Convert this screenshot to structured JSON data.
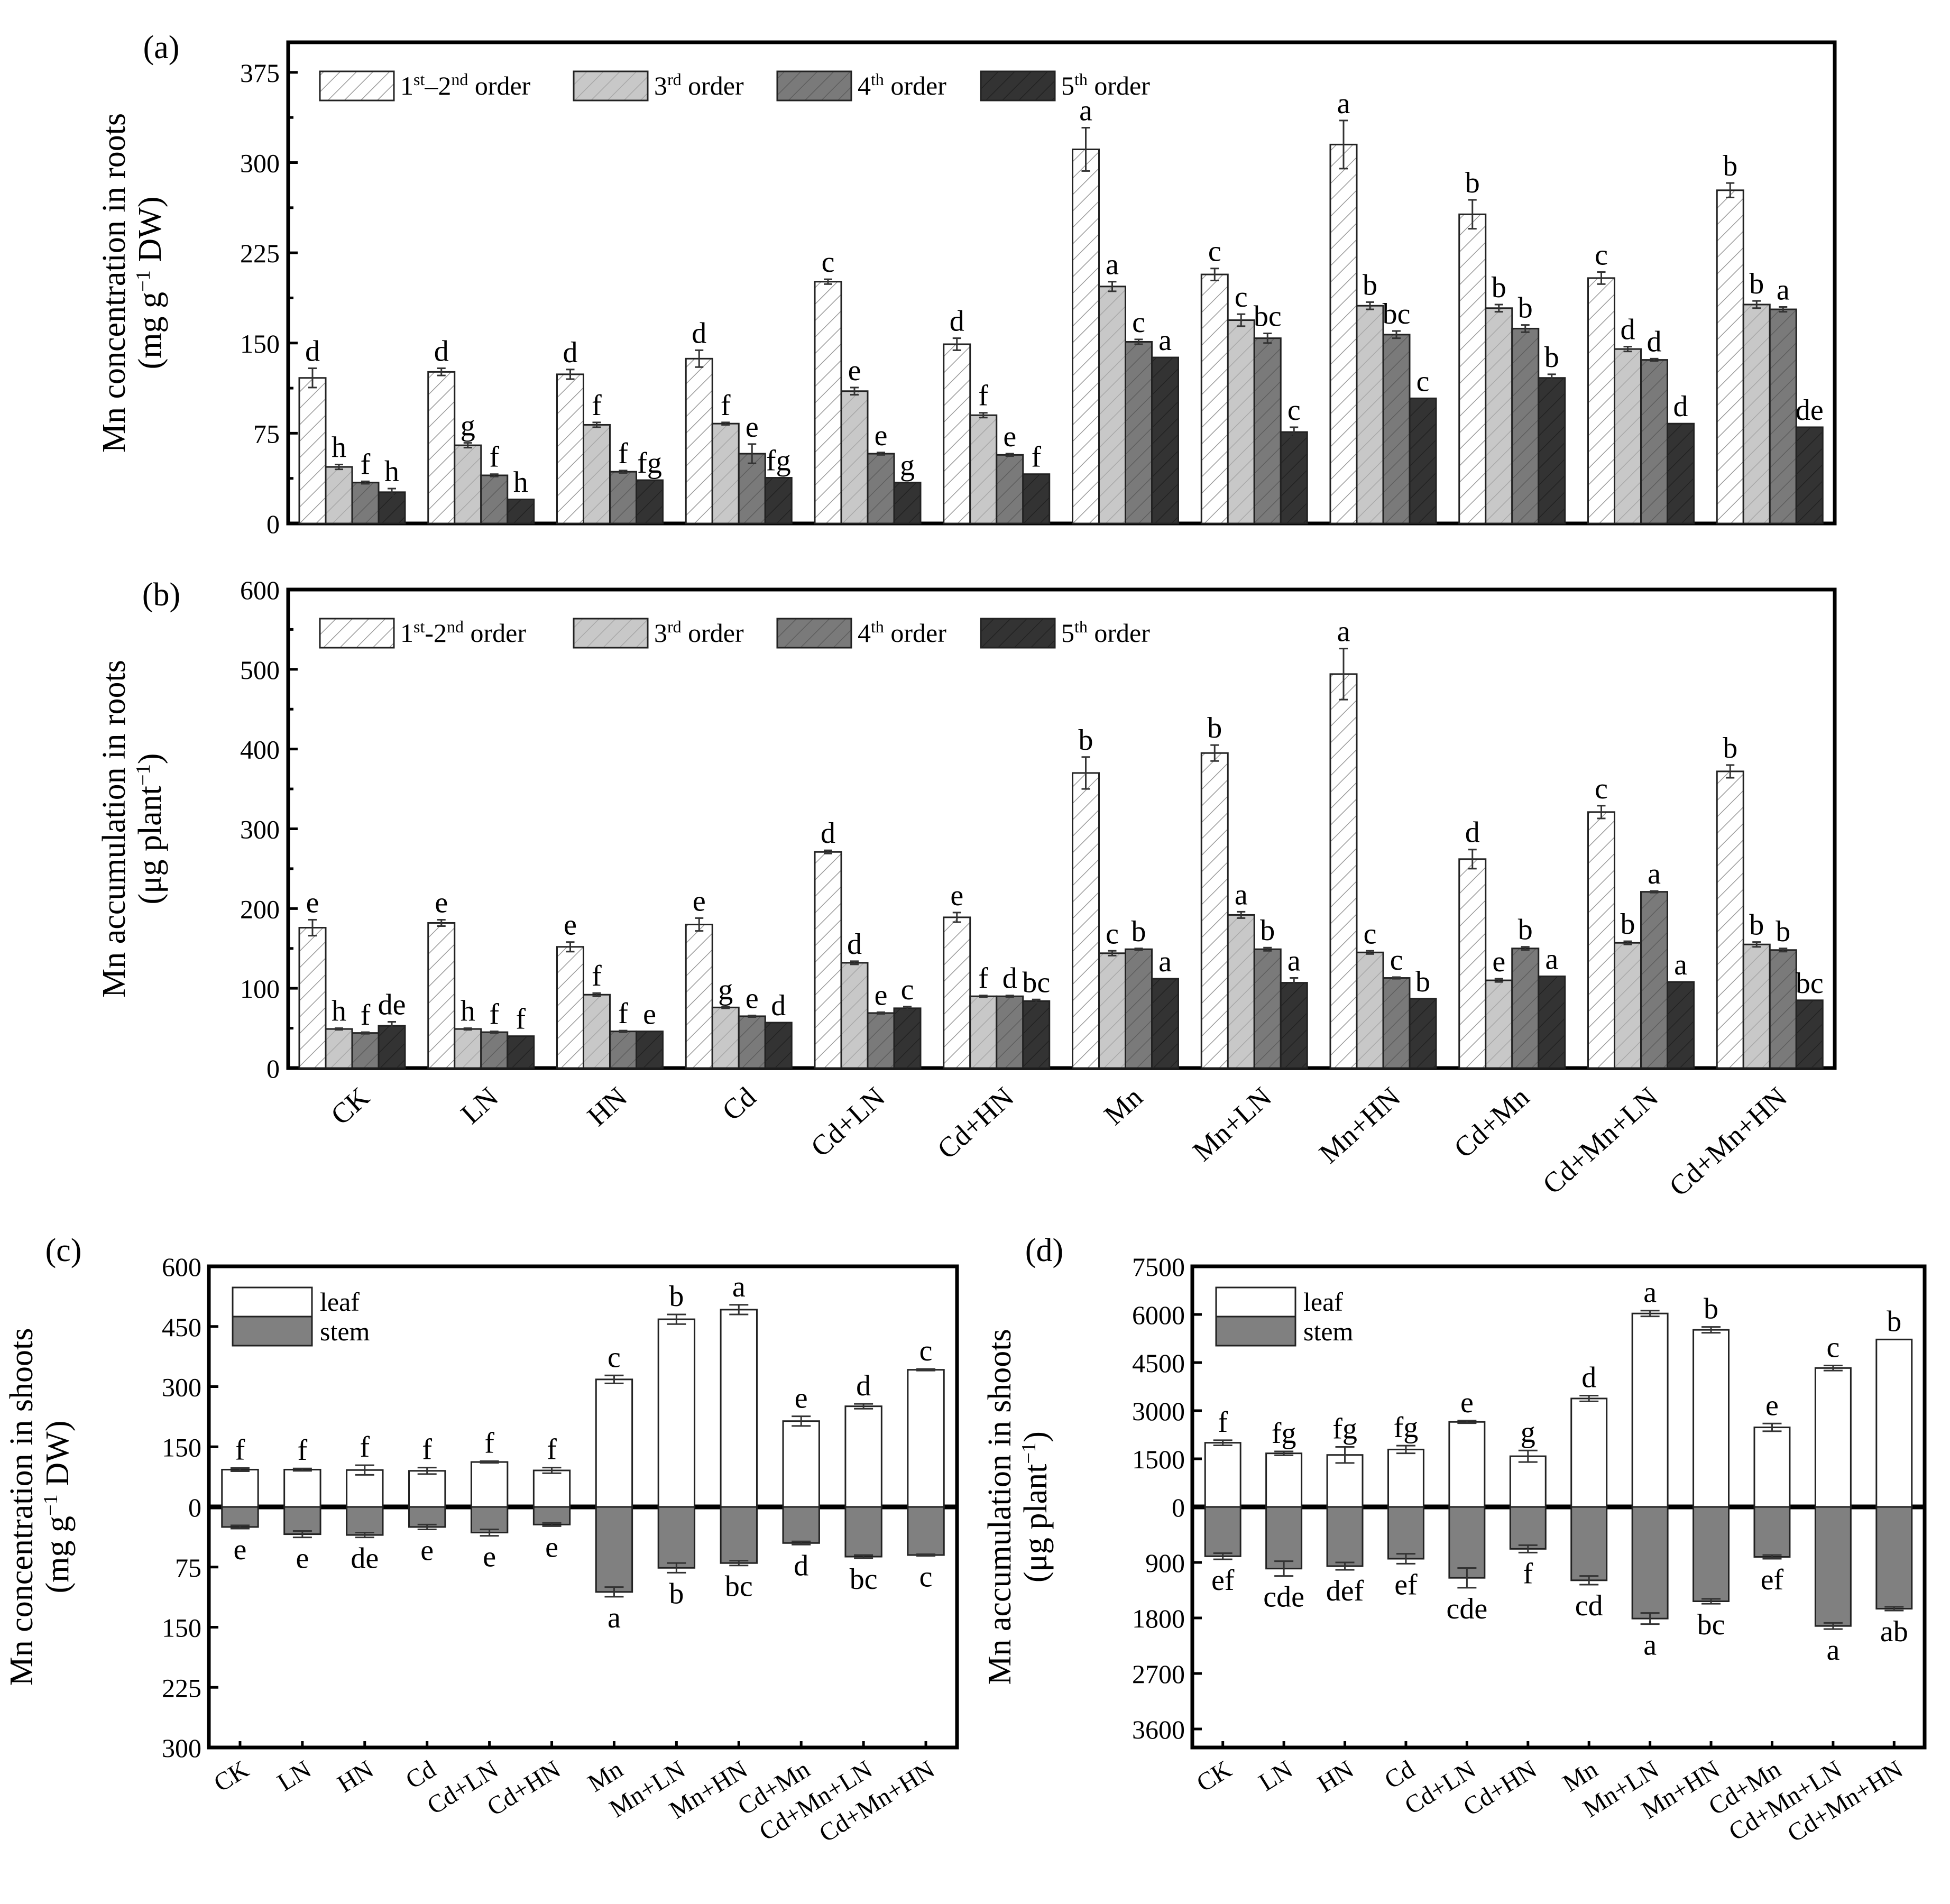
{
  "categories": [
    "CK",
    "LN",
    "HN",
    "Cd",
    "Cd+LN",
    "Cd+HN",
    "Mn",
    "Mn+LN",
    "Mn+HN",
    "Cd+Mn",
    "Cd+Mn+LN",
    "Cd+Mn+HN"
  ],
  "colors": {
    "order12": "#ffffff",
    "order3": "#c8c8c8",
    "order4": "#7a7a7a",
    "order5": "#333333",
    "leaf": "#ffffff",
    "stem": "#808080"
  },
  "chart_data": [
    {
      "id": "a",
      "type": "bar",
      "panel_label": "(a)",
      "ylabel_line1": "Mn concentration in roots",
      "ylabel_line2_pre": "(mg g",
      "ylabel_line2_sup": "−1",
      "ylabel_line2_post": " DW)",
      "ylim": [
        0,
        400
      ],
      "yticks": [
        0,
        75,
        150,
        225,
        300,
        375
      ],
      "legend": [
        {
          "pre": "1",
          "sup1": "st",
          "mid": "–2",
          "sup2": "nd",
          "post": " order"
        },
        {
          "pre": "3",
          "sup1": "rd",
          "mid": "",
          "sup2": "",
          "post": " order"
        },
        {
          "pre": "4",
          "sup1": "th",
          "mid": "",
          "sup2": "",
          "post": " order"
        },
        {
          "pre": "5",
          "sup1": "th",
          "mid": "",
          "sup2": "",
          "post": " order"
        }
      ],
      "series": [
        {
          "values": [
            121,
            126,
            124,
            137,
            201,
            149,
            311,
            207,
            315,
            257,
            204,
            277
          ],
          "errors": [
            8,
            3,
            4,
            7,
            2,
            5,
            18,
            5,
            20,
            12,
            5,
            6
          ],
          "letters": [
            "d",
            "d",
            "d",
            "d",
            "c",
            "d",
            "a",
            "c",
            "a",
            "b",
            "c",
            "b"
          ]
        },
        {
          "values": [
            47,
            65,
            82,
            83,
            110,
            90,
            197,
            169,
            181,
            179,
            145,
            182
          ],
          "errors": [
            2,
            2,
            2,
            1,
            3,
            2,
            4,
            5,
            3,
            3,
            2,
            3
          ],
          "letters": [
            "h",
            "g",
            "f",
            "f",
            "e",
            "f",
            "a",
            "c",
            "b",
            "b",
            "d",
            "b"
          ]
        },
        {
          "values": [
            34,
            40,
            43,
            58,
            58,
            57,
            151,
            154,
            157,
            162,
            136,
            178
          ],
          "errors": [
            1,
            1,
            1,
            8,
            1,
            1,
            2,
            4,
            3,
            3,
            1,
            2
          ],
          "letters": [
            "f",
            "f",
            "f",
            "e",
            "e",
            "e",
            "c",
            "bc",
            "bc",
            "b",
            "d",
            "a"
          ]
        },
        {
          "values": [
            26,
            20,
            36,
            38,
            34,
            41,
            138,
            76,
            104,
            121,
            83,
            80
          ],
          "errors": [
            3,
            0,
            0,
            0,
            0,
            0,
            0,
            4,
            0,
            3,
            0,
            0
          ],
          "letters": [
            "h",
            "h",
            "fg",
            "fg",
            "g",
            "f",
            "a",
            "c",
            "c",
            "b",
            "d",
            "de"
          ]
        }
      ]
    },
    {
      "id": "b",
      "type": "bar",
      "panel_label": "(b)",
      "ylabel_line1": "Mn accumulation in roots",
      "ylabel_line2_pre": "(μg plant",
      "ylabel_line2_sup": "−1",
      "ylabel_line2_post": ")",
      "ylim": [
        0,
        600
      ],
      "yticks": [
        0,
        100,
        200,
        300,
        400,
        500,
        600
      ],
      "legend": [
        {
          "pre": "1",
          "sup1": "st",
          "mid": "-2",
          "sup2": "nd",
          "post": " order"
        },
        {
          "pre": "3",
          "sup1": "rd",
          "mid": "",
          "sup2": "",
          "post": " order"
        },
        {
          "pre": "4",
          "sup1": "th",
          "mid": "",
          "sup2": "",
          "post": " order"
        },
        {
          "pre": "5",
          "sup1": "th",
          "mid": "",
          "sup2": "",
          "post": " order"
        }
      ],
      "series": [
        {
          "values": [
            176,
            182,
            152,
            180,
            271,
            189,
            370,
            395,
            494,
            262,
            321,
            372
          ],
          "errors": [
            10,
            4,
            6,
            8,
            2,
            6,
            20,
            10,
            32,
            12,
            8,
            8
          ],
          "letters": [
            "e",
            "e",
            "e",
            "e",
            "d",
            "e",
            "b",
            "b",
            "a",
            "d",
            "c",
            "b"
          ]
        },
        {
          "values": [
            49,
            49,
            92,
            76,
            132,
            90,
            144,
            192,
            145,
            110,
            157,
            155
          ],
          "errors": [
            1,
            1,
            2,
            1,
            2,
            1,
            3,
            4,
            2,
            2,
            2,
            3
          ],
          "letters": [
            "h",
            "h",
            "f",
            "g",
            "d",
            "f",
            "c",
            "a",
            "c",
            "e",
            "b",
            "b"
          ]
        },
        {
          "values": [
            44,
            45,
            46,
            65,
            69,
            90,
            149,
            149,
            113,
            150,
            221,
            148
          ],
          "errors": [
            1,
            1,
            1,
            1,
            1,
            1,
            1,
            2,
            1,
            2,
            1,
            2
          ],
          "letters": [
            "f",
            "f",
            "f",
            "e",
            "e",
            "d",
            "b",
            "b",
            "c",
            "b",
            "a",
            "b"
          ]
        },
        {
          "values": [
            53,
            40,
            46,
            57,
            75,
            84,
            112,
            107,
            87,
            115,
            108,
            85
          ],
          "errors": [
            5,
            0,
            0,
            0,
            2,
            2,
            0,
            6,
            0,
            0,
            0,
            0
          ],
          "letters": [
            "de",
            "f",
            "e",
            "d",
            "c",
            "bc",
            "a",
            "a",
            "b",
            "a",
            "a",
            "bc"
          ]
        }
      ]
    },
    {
      "id": "c",
      "type": "bar",
      "panel_label": "(c)",
      "ylabel_line1": "Mn concentration in shoots",
      "ylabel_line2_pre": "(mg g",
      "ylabel_line2_sup": "−1",
      "ylabel_line2_post": " DW)",
      "yticks_up": [
        0,
        150,
        300,
        450,
        600
      ],
      "yticks_down": [
        75,
        150,
        225,
        300
      ],
      "ylim_up": 600,
      "ylim_down": 300,
      "legend": [
        "leaf",
        "stem"
      ],
      "leaf": {
        "values": [
          93,
          93,
          92,
          90,
          112,
          91,
          318,
          468,
          492,
          214,
          251,
          342
        ],
        "errors": [
          4,
          3,
          12,
          8,
          2,
          7,
          10,
          12,
          12,
          12,
          6,
          2
        ],
        "letters": [
          "f",
          "f",
          "f",
          "f",
          "f",
          "f",
          "c",
          "b",
          "a",
          "e",
          "d",
          "c"
        ]
      },
      "stem": {
        "values": [
          25,
          34,
          35,
          25,
          32,
          22,
          106,
          76,
          70,
          45,
          62,
          60
        ],
        "errors": [
          2,
          4,
          3,
          3,
          4,
          2,
          6,
          6,
          3,
          2,
          2,
          1
        ],
        "letters": [
          "e",
          "e",
          "de",
          "e",
          "e",
          "e",
          "a",
          "b",
          "bc",
          "d",
          "bc",
          "c"
        ]
      }
    },
    {
      "id": "d",
      "type": "bar",
      "panel_label": "(d)",
      "ylabel_line1": "Mn accumulation in shoots",
      "ylabel_line2_pre": "(μg plant",
      "ylabel_line2_sup": "−1",
      "ylabel_line2_post": ")",
      "yticks_up": [
        0,
        1500,
        3000,
        4500,
        6000,
        7500
      ],
      "yticks_down": [
        900,
        1800,
        2700,
        3600
      ],
      "ylim_up": 7500,
      "ylim_down": 3900,
      "legend": [
        "leaf",
        "stem"
      ],
      "leaf": {
        "values": [
          2000,
          1670,
          1620,
          1790,
          2650,
          1580,
          3380,
          6030,
          5520,
          2480,
          4330,
          5220
        ],
        "errors": [
          80,
          60,
          250,
          120,
          40,
          180,
          90,
          90,
          90,
          120,
          80,
          0
        ],
        "letters": [
          "f",
          "fg",
          "fg",
          "fg",
          "e",
          "g",
          "d",
          "a",
          "b",
          "e",
          "c",
          "b"
        ]
      },
      "stem": {
        "values": [
          800,
          1000,
          960,
          840,
          1150,
          680,
          1190,
          1810,
          1530,
          810,
          1930,
          1650
        ],
        "errors": [
          50,
          120,
          60,
          80,
          160,
          60,
          70,
          90,
          40,
          30,
          50,
          30
        ],
        "letters": [
          "ef",
          "cde",
          "def",
          "ef",
          "cde",
          "f",
          "cd",
          "a",
          "bc",
          "ef",
          "a",
          "ab"
        ]
      }
    }
  ]
}
